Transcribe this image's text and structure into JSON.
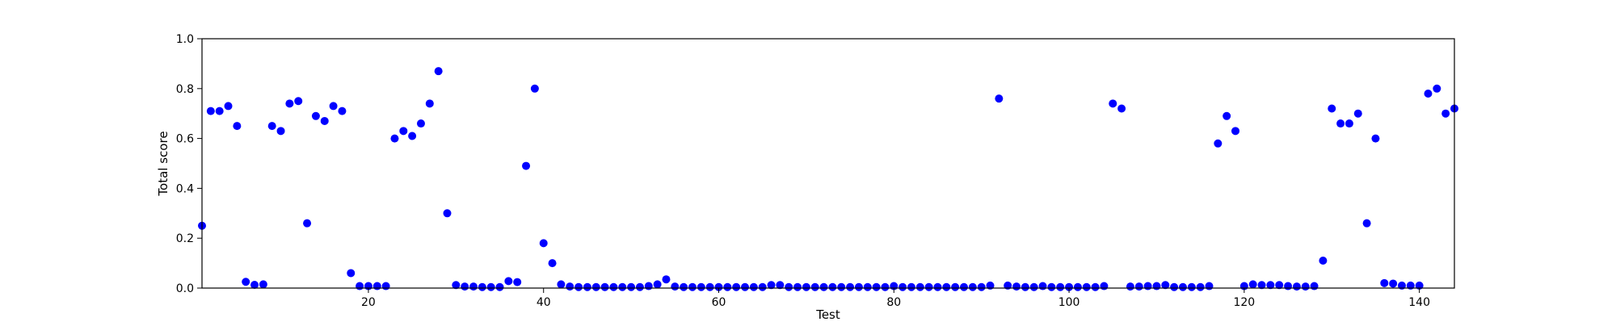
{
  "chart_data": {
    "type": "scatter",
    "title": "",
    "xlabel": "Test",
    "ylabel": "Total score",
    "xlim": [
      1,
      144
    ],
    "ylim": [
      0.0,
      1.0
    ],
    "xticks": [
      20,
      40,
      60,
      80,
      100,
      120,
      140
    ],
    "yticks": [
      0.0,
      0.2,
      0.4,
      0.6,
      0.8,
      1.0
    ],
    "xtick_labels": [
      "20",
      "40",
      "60",
      "80",
      "100",
      "120",
      "140"
    ],
    "ytick_labels": [
      "0.0",
      "0.2",
      "0.4",
      "0.6",
      "0.8",
      "1.0"
    ],
    "grid": false,
    "legend": "none",
    "marker_color": "#0000ff",
    "series": [
      {
        "x": [
          1,
          2,
          3,
          4,
          5,
          6,
          7,
          8,
          9,
          10,
          11,
          12,
          13,
          14,
          15,
          16,
          17,
          18,
          19,
          20,
          21,
          22,
          23,
          24,
          25,
          26,
          27,
          28,
          29,
          30,
          31,
          32,
          33,
          34,
          35,
          36,
          37,
          38,
          39,
          40,
          41,
          42,
          43,
          44,
          45,
          46,
          47,
          48,
          49,
          50,
          51,
          52,
          53,
          54,
          55,
          56,
          57,
          58,
          59,
          60,
          61,
          62,
          63,
          64,
          65,
          66,
          67,
          68,
          69,
          70,
          71,
          72,
          73,
          74,
          75,
          76,
          77,
          78,
          79,
          80,
          81,
          82,
          83,
          84,
          85,
          86,
          87,
          88,
          89,
          90,
          91,
          92,
          93,
          94,
          95,
          96,
          97,
          98,
          99,
          100,
          101,
          102,
          103,
          104,
          105,
          106,
          107,
          108,
          109,
          110,
          111,
          112,
          113,
          114,
          115,
          116,
          117,
          118,
          119,
          120,
          121,
          122,
          123,
          124,
          125,
          126,
          127,
          128,
          129,
          130,
          131,
          132,
          133,
          134,
          135,
          136,
          137,
          138,
          139,
          140,
          141,
          142,
          143,
          144
        ],
        "y": [
          0.25,
          0.71,
          0.71,
          0.73,
          0.65,
          0.025,
          0.013,
          0.015,
          0.65,
          0.63,
          0.74,
          0.75,
          0.26,
          0.69,
          0.67,
          0.73,
          0.71,
          0.06,
          0.008,
          0.008,
          0.008,
          0.008,
          0.6,
          0.63,
          0.61,
          0.66,
          0.74,
          0.87,
          0.3,
          0.012,
          0.006,
          0.006,
          0.004,
          0.004,
          0.004,
          0.028,
          0.024,
          0.49,
          0.8,
          0.18,
          0.1,
          0.015,
          0.006,
          0.004,
          0.004,
          0.004,
          0.004,
          0.004,
          0.004,
          0.004,
          0.004,
          0.008,
          0.015,
          0.035,
          0.006,
          0.004,
          0.004,
          0.004,
          0.004,
          0.004,
          0.004,
          0.004,
          0.004,
          0.004,
          0.004,
          0.012,
          0.012,
          0.004,
          0.004,
          0.004,
          0.004,
          0.004,
          0.004,
          0.004,
          0.004,
          0.004,
          0.004,
          0.004,
          0.004,
          0.008,
          0.004,
          0.004,
          0.004,
          0.004,
          0.004,
          0.004,
          0.004,
          0.004,
          0.004,
          0.004,
          0.01,
          0.76,
          0.01,
          0.006,
          0.004,
          0.004,
          0.008,
          0.004,
          0.004,
          0.004,
          0.004,
          0.004,
          0.004,
          0.008,
          0.74,
          0.72,
          0.006,
          0.006,
          0.008,
          0.008,
          0.012,
          0.004,
          0.004,
          0.004,
          0.004,
          0.008,
          0.58,
          0.69,
          0.63,
          0.008,
          0.015,
          0.012,
          0.012,
          0.012,
          0.008,
          0.006,
          0.006,
          0.008,
          0.11,
          0.72,
          0.66,
          0.66,
          0.7,
          0.26,
          0.6,
          0.02,
          0.018,
          0.01,
          0.01,
          0.01,
          0.78,
          0.8,
          0.7,
          0.72
        ]
      }
    ]
  }
}
